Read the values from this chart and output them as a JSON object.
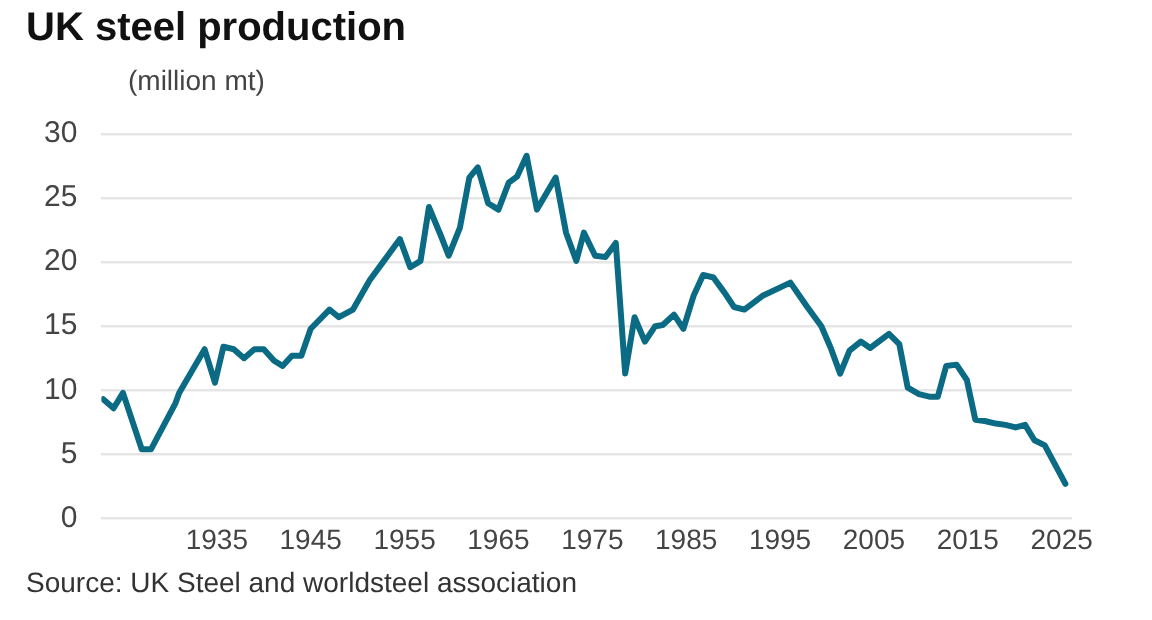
{
  "chart_data": {
    "type": "line",
    "title": "UK steel production",
    "ylabel": "(million mt)",
    "annotations": [
      "Source: UK Steel and worldsteel association"
    ],
    "x": [
      1922.9,
      1924,
      1925,
      1927,
      1928,
      1930.6,
      1931,
      1932.5,
      1933.7,
      1934.8,
      1935.7,
      1936.8,
      1937.9,
      1939,
      1940,
      1941.1,
      1942,
      1943,
      1944,
      1945,
      1947,
      1948,
      1949.5,
      1951.3,
      1952.7,
      1954.5,
      1955.6,
      1956.7,
      1957.6,
      1958.9,
      1959.7,
      1960.9,
      1961.9,
      1962.8,
      1963.9,
      1965,
      1966.1,
      1967,
      1968,
      1969.1,
      1971.1,
      1972.2,
      1973.3,
      1974.1,
      1975.3,
      1976.4,
      1977.5,
      1978.5,
      1979.5,
      1980.6,
      1981.7,
      1982.5,
      1983.7,
      1984.7,
      1985.8,
      1986.8,
      1987.9,
      1989.1,
      1990.1,
      1991.2,
      1993.2,
      1996.1,
      1997.9,
      1999.4,
      2000.4,
      2001.4,
      2002.4,
      2003.6,
      2004.6,
      2006.6,
      2007.7,
      2008.6,
      2009.8,
      2010.9,
      2011.8,
      2012.7,
      2013.8,
      2014.9,
      2015.8,
      2016.8,
      2018,
      2019,
      2020.1,
      2021.1,
      2022.1,
      2023.2,
      2025.4
    ],
    "series": [
      {
        "color": "#0b6b84",
        "values": [
          9.3,
          8.6,
          9.8,
          5.4,
          5.4,
          9.0,
          9.8,
          11.7,
          13.2,
          10.6,
          13.4,
          13.2,
          12.5,
          13.2,
          13.2,
          12.3,
          11.9,
          12.7,
          12.7,
          14.8,
          16.3,
          15.7,
          16.3,
          18.6,
          20.0,
          21.8,
          19.6,
          20.1,
          24.3,
          22.0,
          20.5,
          22.7,
          26.6,
          27.4,
          24.6,
          24.1,
          26.2,
          26.7,
          28.3,
          24.1,
          26.6,
          22.3,
          20.1,
          22.3,
          20.5,
          20.4,
          21.5,
          11.3,
          15.7,
          13.8,
          15.0,
          15.1,
          15.9,
          14.8,
          17.4,
          19.0,
          18.8,
          17.6,
          16.5,
          16.3,
          17.4,
          18.4,
          16.5,
          15.0,
          13.3,
          11.3,
          13.1,
          13.8,
          13.3,
          14.4,
          13.6,
          10.2,
          9.7,
          9.5,
          9.5,
          11.9,
          12.0,
          10.8,
          7.7,
          7.6,
          7.4,
          7.3,
          7.1,
          7.3,
          6.1,
          5.7,
          2.7
        ]
      }
    ],
    "xlim": [
      1922.7,
      2026.1
    ],
    "xticks": [
      1935,
      1945,
      1955,
      1965,
      1975,
      1985,
      1995,
      2005,
      2015,
      2025
    ],
    "ylim": [
      0,
      30
    ],
    "yticks": [
      0,
      5,
      10,
      15,
      20,
      25,
      30
    ],
    "grid": "y",
    "marker": "none",
    "line_style": "solid",
    "legend": false
  }
}
